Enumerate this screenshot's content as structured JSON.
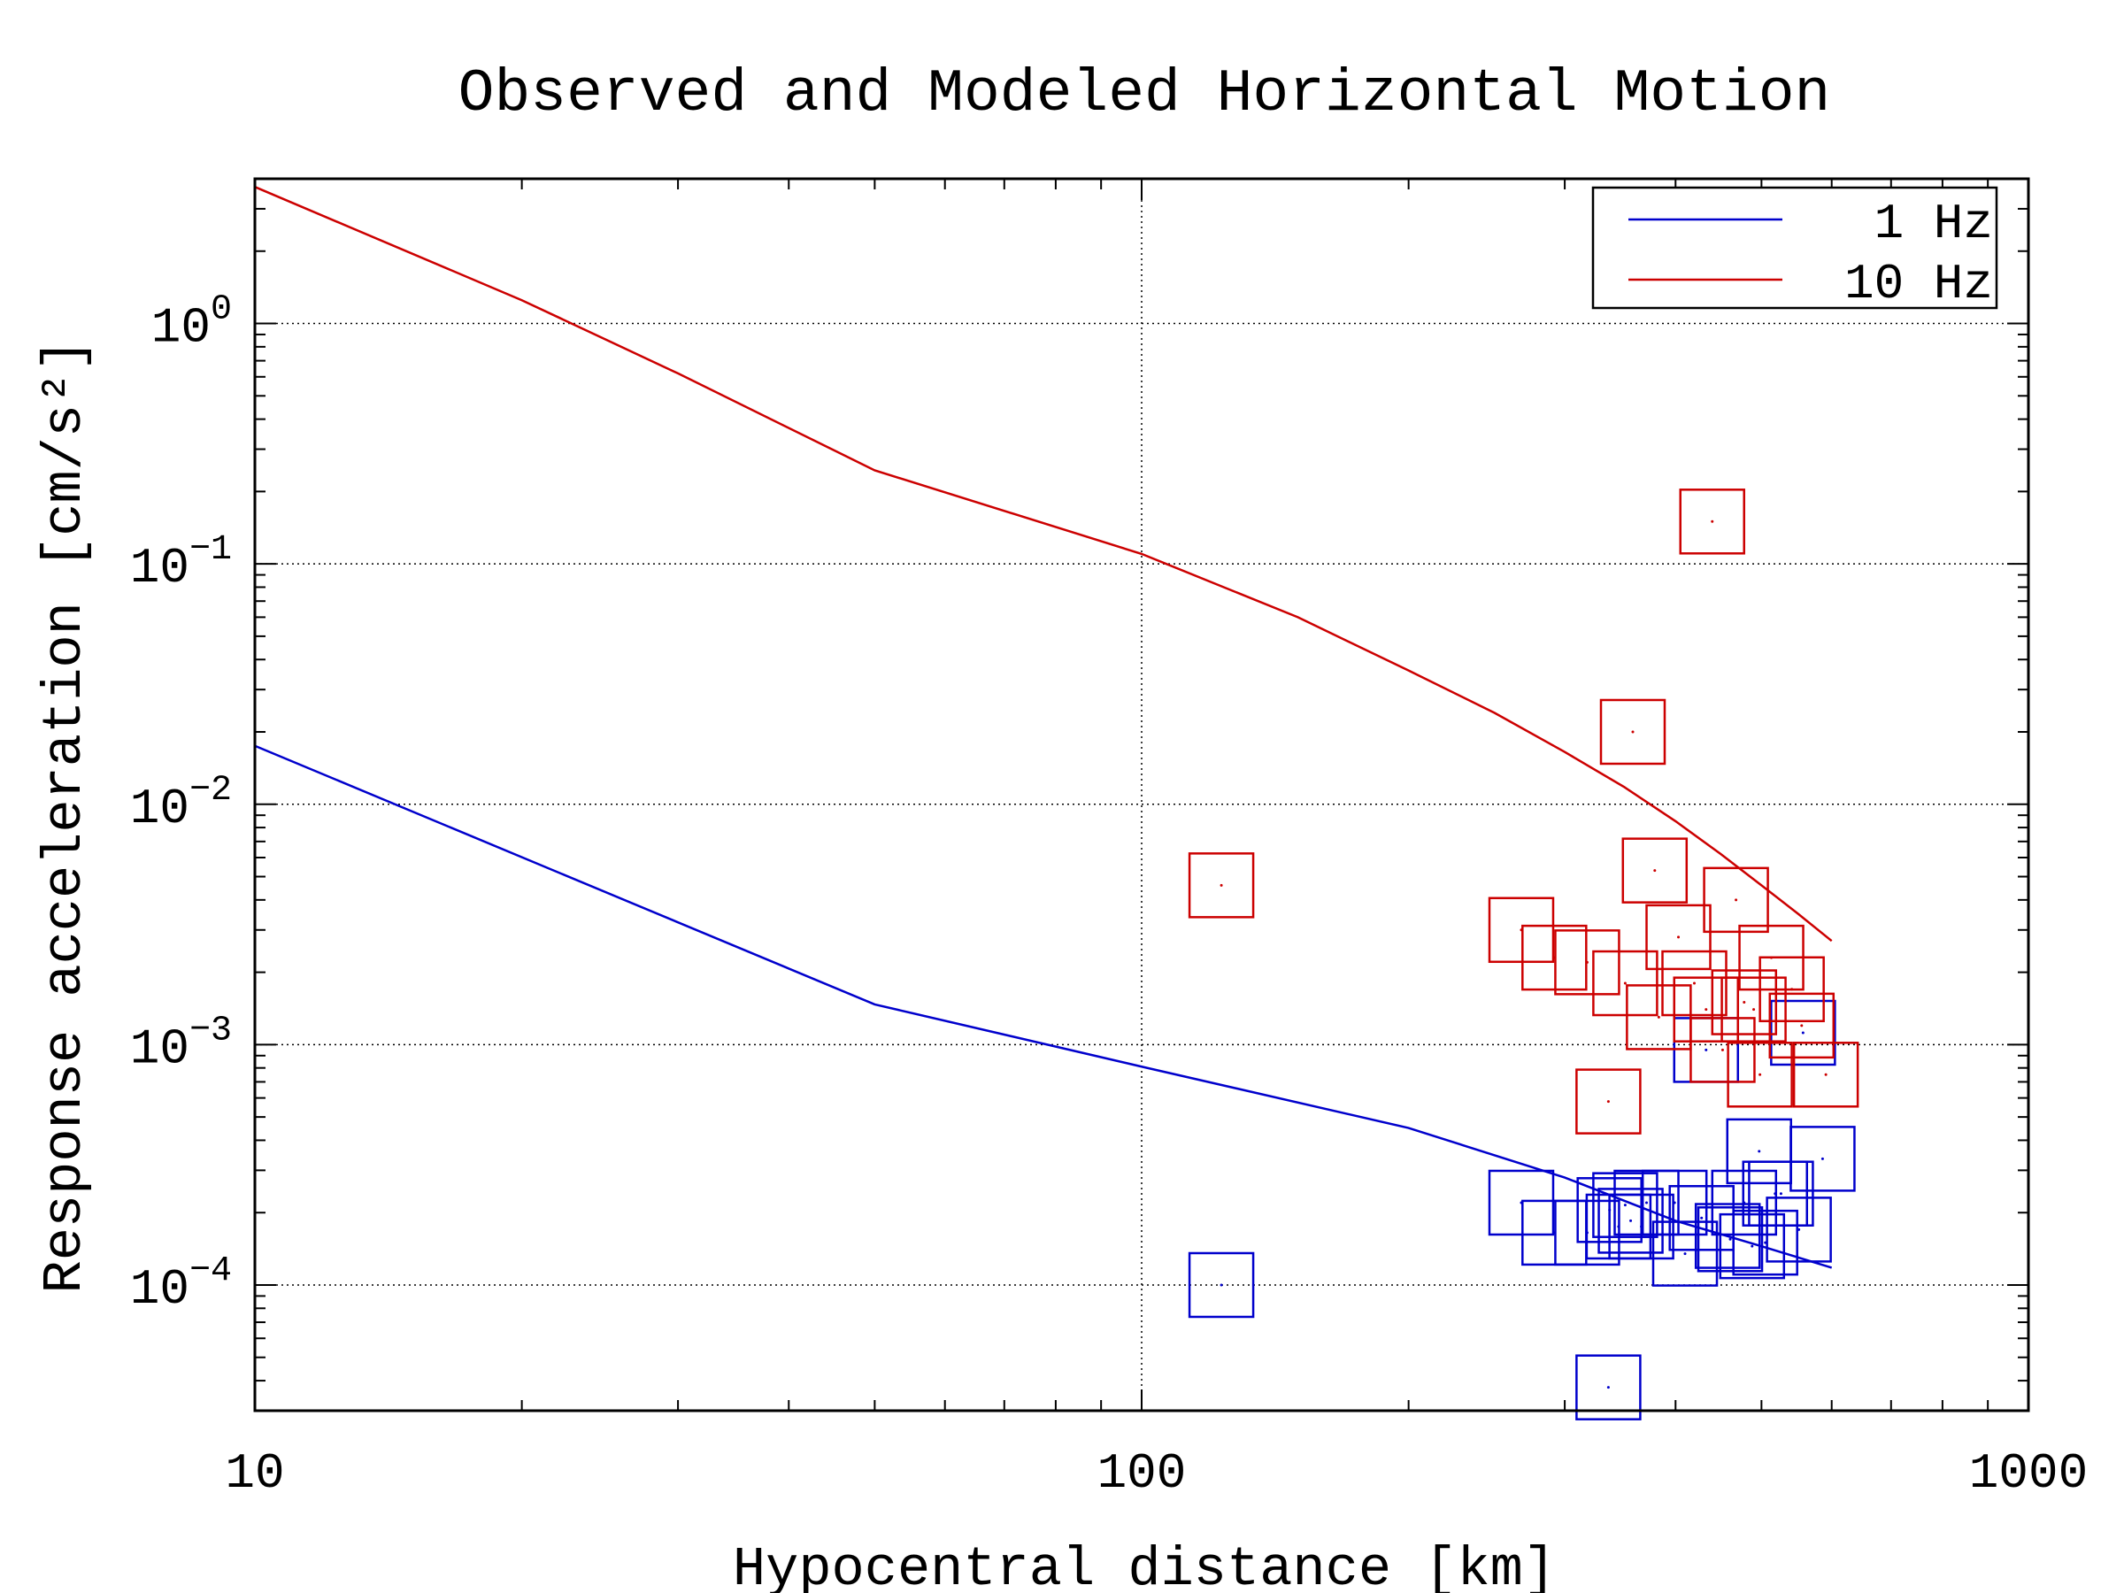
{
  "chart_data": {
    "type": "scatter",
    "title": "Observed and Modeled Horizontal Motion",
    "xlabel": "Hypocentral distance [km]",
    "ylabel": "Response acceleration [cm/s²]",
    "x_scale": "log",
    "y_scale": "log",
    "xlim": [
      10,
      1000
    ],
    "ylim": [
      3e-05,
      4
    ],
    "x_ticks": [
      {
        "value": 10,
        "label": "10"
      },
      {
        "value": 100,
        "label": "100"
      },
      {
        "value": 1000,
        "label": "1000"
      }
    ],
    "y_ticks": [
      {
        "value": 0.0001,
        "base": "10",
        "exp": "−4"
      },
      {
        "value": 0.001,
        "base": "10",
        "exp": "−3"
      },
      {
        "value": 0.01,
        "base": "10",
        "exp": "−2"
      },
      {
        "value": 0.1,
        "base": "10",
        "exp": "−1"
      },
      {
        "value": 1,
        "base": "10",
        "exp": "0"
      }
    ],
    "grid": true,
    "legend_position": "top-right",
    "series": [
      {
        "name": "1 Hz",
        "color": "#0000cc",
        "model_line": {
          "x": [
            10,
            50,
            100,
            200,
            300,
            400,
            500,
            600
          ],
          "y": [
            0.0175,
            0.00147,
            0.00081,
            0.00045,
            0.00028,
            0.000185,
            0.000145,
            0.000118
          ]
        },
        "observed": {
          "x": [
            123,
            268,
            292,
            318,
            336,
            337,
            345,
            351,
            356,
            366,
            371,
            399,
            410,
            428,
            433,
            458,
            461,
            478,
            488,
            497,
            505,
            518,
            526,
            551,
            557,
            586
          ],
          "y": [
            0.0001,
            0.00022,
            0.000165,
            0.000165,
            3.75e-05,
            0.000205,
            0.000175,
            0.000215,
            0.000185,
            0.000175,
            0.00022,
            0.00022,
            0.000135,
            0.00019,
            0.00095,
            0.00016,
            0.000155,
            0.00022,
            0.000145,
            0.00036,
            0.00015,
            0.00024,
            0.00024,
            0.00017,
            0.00112,
            0.000335
          ]
        }
      },
      {
        "name": "10 Hz",
        "color": "#cc0000",
        "model_line": {
          "x": [
            10,
            20,
            30,
            50,
            100,
            150,
            200,
            250,
            300,
            350,
            400,
            450,
            500,
            550,
            600
          ],
          "y": [
            3.7,
            1.25,
            0.62,
            0.245,
            0.11,
            0.06,
            0.036,
            0.024,
            0.0165,
            0.0118,
            0.0085,
            0.0062,
            0.0046,
            0.0035,
            0.0027
          ]
        },
        "observed": {
          "x": [
            123,
            268,
            292,
            318,
            336,
            351,
            358,
            379,
            383,
            403,
            420,
            433,
            440,
            452,
            468,
            478,
            490,
            498,
            513,
            541,
            555,
            591
          ],
          "y": [
            0.0046,
            0.003,
            0.0023,
            0.0022,
            0.00058,
            0.0018,
            0.02,
            0.0053,
            0.0013,
            0.0028,
            0.0018,
            0.0014,
            0.15,
            0.00095,
            0.004,
            0.0015,
            0.0014,
            0.00075,
            0.0023,
            0.0017,
            0.0012,
            0.00075
          ]
        }
      }
    ]
  }
}
